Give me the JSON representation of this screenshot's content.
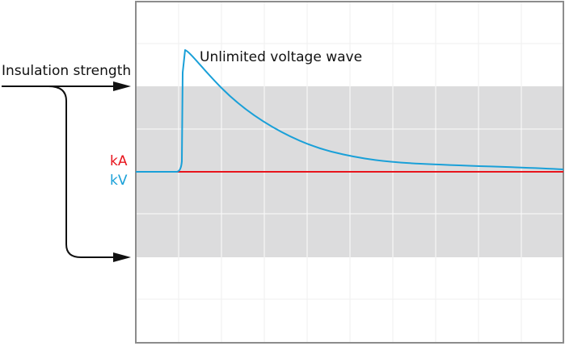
{
  "labels": {
    "insulation_strength": "Insulation strength",
    "wave": "Unlimited voltage wave",
    "current_unit": "kA",
    "voltage_unit": "kV"
  },
  "colors": {
    "current": "#e8141c",
    "voltage": "#1aa0d8",
    "band": "#dcdcdd",
    "frame": "#8c8c8c",
    "grid": "#ffffff",
    "arrow": "#111111"
  }
}
